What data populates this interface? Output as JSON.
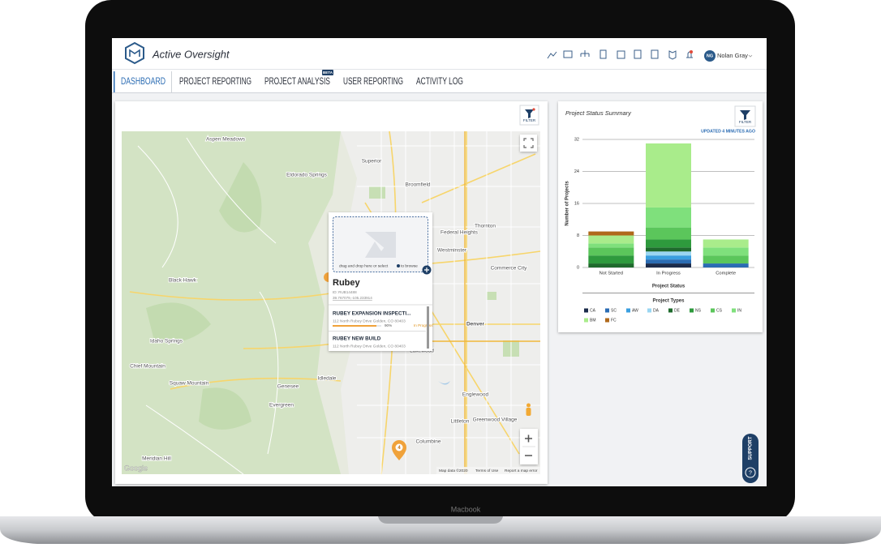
{
  "header": {
    "app_name": "Active Oversight",
    "user_initials": "NG",
    "user": "Nolan Gray"
  },
  "nav": {
    "tabs": [
      "DASHBOARD",
      "PROJECT REPORTING",
      "PROJECT ANALYSIS",
      "USER REPORTING",
      "ACTIVITY LOG"
    ],
    "badge": "BETA"
  },
  "map_panel": {
    "filter": "FILTER",
    "places": [
      "Aspen Meadows",
      "Eldorado Springs",
      "Superior",
      "Broomfield",
      "Thornton",
      "Federal Heights",
      "Westminster",
      "Commerce City",
      "Denver",
      "Lakewood",
      "Englewood",
      "Littleton",
      "Greenwood Village",
      "Columbine",
      "Black Hawk",
      "Idaho Springs",
      "Chief Mountain",
      "Squaw Mountain",
      "Genesee",
      "Idledale",
      "Evergreen",
      "Meridian Hill"
    ],
    "popup": {
      "upload_hint": "drag and drop here or select",
      "upload_link": "to browse",
      "name": "Rubey",
      "id": "ID: RUB14488",
      "coords": "39.767079,-105.233914",
      "items": [
        {
          "title": "RUBEY EXPANSION INSPECTI...",
          "address": "112 North Rubey Drive Golden, CO 80403",
          "progress": 90,
          "progress_label": "90%",
          "status": "In Progress"
        },
        {
          "title": "RUBEY NEW BUILD",
          "address": "112 North Rubey Drive Golden, CO 80403"
        }
      ]
    },
    "cluster": "4",
    "google": "Google",
    "attribution": [
      "Map data ©2020",
      "Terms of Use",
      "Report a map error"
    ]
  },
  "chart_panel": {
    "filter": "FILTER",
    "updated": "UPDATED 4 MINUTES AGO",
    "chart_data": {
      "type": "bar",
      "stacked": true,
      "title": "Project Status Summary",
      "y_label": "Number of Projects",
      "x_label": "Project Status",
      "legend_title": "Project Types",
      "categories": [
        "Not Started",
        "In Progress",
        "Complete"
      ],
      "ylim": [
        0,
        32
      ],
      "yticks": [
        0,
        8,
        16,
        24,
        32
      ],
      "grid": true,
      "series": [
        {
          "name": "CA",
          "color": "#1b2b4b",
          "values": [
            0,
            1,
            0
          ]
        },
        {
          "name": "SC",
          "color": "#2b6cb3",
          "values": [
            0,
            1,
            1
          ]
        },
        {
          "name": "AW",
          "color": "#3a9fe0",
          "values": [
            0,
            1,
            0
          ]
        },
        {
          "name": "DA",
          "color": "#9ad6f2",
          "values": [
            0,
            1,
            0
          ]
        },
        {
          "name": "DE",
          "color": "#1e6a2c",
          "values": [
            1,
            1,
            0
          ]
        },
        {
          "name": "NS",
          "color": "#2e9a3d",
          "values": [
            2,
            2,
            0
          ]
        },
        {
          "name": "CS",
          "color": "#5bc65b",
          "values": [
            2,
            3,
            2
          ]
        },
        {
          "name": "IN",
          "color": "#7fe07c",
          "values": [
            1,
            5,
            2
          ]
        },
        {
          "name": "BM",
          "color": "#a9ec8b",
          "values": [
            2,
            16,
            2
          ]
        },
        {
          "name": "FC",
          "color": "#b0691b",
          "values": [
            1,
            0,
            0
          ]
        }
      ]
    }
  },
  "support": "SUPPORT",
  "device_label": "Macbook"
}
